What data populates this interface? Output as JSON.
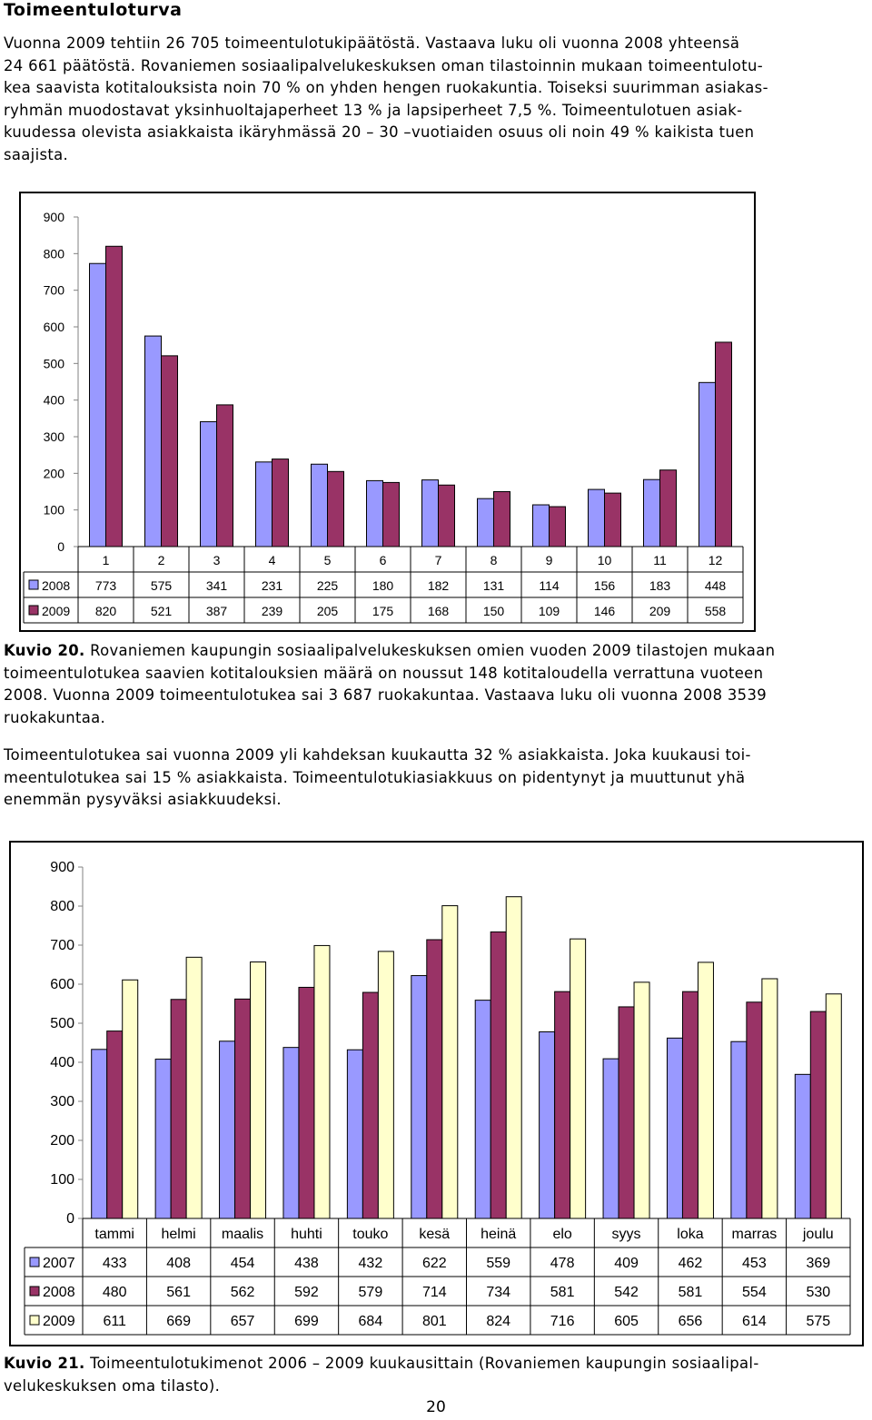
{
  "heading": "Toimeentuloturva",
  "intro_lines": [
    "Vuonna 2009 tehtiin 26 705 toimeentulotukipäätöstä. Vastaava luku oli vuonna 2008 yhteensä",
    "24 661 päätöstä. Rovaniemen sosiaalipalvelukeskuksen oman tilastoinnin mukaan toimeentulotu-",
    "kea saavista kotitalouksista noin 70 % on yhden hengen ruokakuntia. Toiseksi suurimman asiakas-",
    "ryhmän muodostavat yksinhuoltajaperheet 13 % ja lapsiperheet 7,5 %. Toimeentulotuen asiak-",
    "kuudessa olevista asiakkaista ikäryhmässä 20 – 30 –vuotiaiden osuus oli noin 49 % kaikista tuen",
    "saajista."
  ],
  "caption1": {
    "label": "Kuvio 20.",
    "lines": [
      " Rovaniemen kaupungin sosiaalipalvelukeskuksen omien vuoden 2009 tilastojen mukaan",
      "toimeentulotukea saavien kotitalouksien määrä on noussut 148 kotitaloudella verrattuna vuoteen",
      "2008. Vuonna 2009 toimeentulotukea sai 3 687 ruokakuntaa. Vastaava luku oli vuonna 2008 3539",
      "ruokakuntaa."
    ]
  },
  "para2_lines": [
    "Toimeentulotukea sai vuonna 2009 yli kahdeksan kuukautta 32 % asiakkaista. Joka kuukausi toi-",
    "meentulotukea sai 15 % asiakkaista. Toimeentulotukiasiakkuus on pidentynyt ja muuttunut yhä",
    "enemmän pysyväksi asiakkuudeksi."
  ],
  "caption2": {
    "label": "Kuvio 21.",
    "lines": [
      " Toimeentulotukimenot 2006 – 2009 kuukausittain (Rovaniemen kaupungin sosiaalipal-",
      "velukeskuksen oma tilasto)."
    ]
  },
  "page_number": "20",
  "colors": {
    "blue": "#9999ff",
    "maroon": "#993366",
    "cream": "#ffffcc"
  },
  "chart_data": [
    {
      "type": "bar",
      "categories": [
        "1",
        "2",
        "3",
        "4",
        "5",
        "6",
        "7",
        "8",
        "9",
        "10",
        "11",
        "12"
      ],
      "series": [
        {
          "name": "2008",
          "color": "#9999ff",
          "values": [
            773,
            575,
            341,
            231,
            225,
            180,
            182,
            131,
            114,
            156,
            183,
            448
          ]
        },
        {
          "name": "2009",
          "color": "#993366",
          "values": [
            820,
            521,
            387,
            239,
            205,
            175,
            168,
            150,
            109,
            146,
            209,
            558
          ]
        }
      ],
      "yticks": [
        "0",
        "100",
        "200",
        "300",
        "400",
        "500",
        "600",
        "700",
        "800",
        "900"
      ],
      "ylim": [
        0,
        900
      ],
      "grid": false,
      "legend": "data-table"
    },
    {
      "type": "bar",
      "categories": [
        "tammi",
        "helmi",
        "maalis",
        "huhti",
        "touko",
        "kesä",
        "heinä",
        "elo",
        "syys",
        "loka",
        "marras",
        "joulu"
      ],
      "series": [
        {
          "name": "2007",
          "color": "#9999ff",
          "values": [
            433,
            408,
            454,
            438,
            432,
            622,
            559,
            478,
            409,
            462,
            453,
            369
          ]
        },
        {
          "name": "2008",
          "color": "#993366",
          "values": [
            480,
            561,
            562,
            592,
            579,
            714,
            734,
            581,
            542,
            581,
            554,
            530
          ]
        },
        {
          "name": "2009",
          "color": "#ffffcc",
          "values": [
            611,
            669,
            657,
            699,
            684,
            801,
            824,
            716,
            605,
            656,
            614,
            575
          ]
        }
      ],
      "yticks": [
        "0",
        "100",
        "200",
        "300",
        "400",
        "500",
        "600",
        "700",
        "800",
        "900"
      ],
      "ylim": [
        0,
        900
      ],
      "grid": false,
      "legend": "data-table"
    }
  ]
}
